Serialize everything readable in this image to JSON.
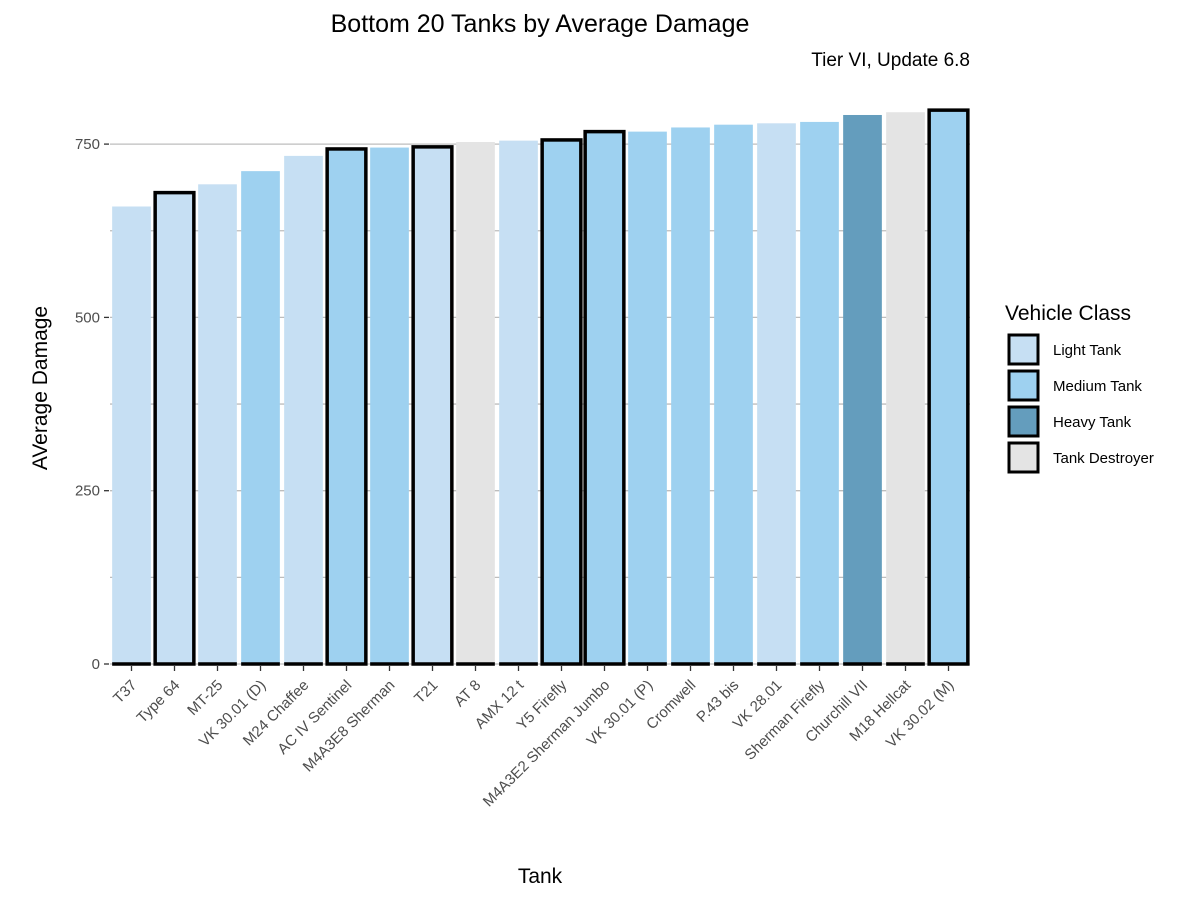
{
  "chart_data": {
    "type": "bar",
    "title": "Bottom 20 Tanks by Average Damage",
    "subtitle": "Tier VI, Update 6.8",
    "xlabel": "Tank",
    "ylabel": "AVerage Damage",
    "ylim": [
      0,
      800
    ],
    "yticks": [
      0,
      250,
      500,
      750
    ],
    "grid": "horizontal",
    "legend": {
      "title": "Vehicle Class",
      "position": "right",
      "entries": [
        {
          "label": "Light Tank",
          "color": "#c6dff3"
        },
        {
          "label": "Medium Tank",
          "color": "#9ed1f0"
        },
        {
          "label": "Heavy Tank",
          "color": "#649dbd"
        },
        {
          "label": "Tank Destroyer",
          "color": "#e4e4e4"
        }
      ]
    },
    "categories": [
      "T37",
      "Type 64",
      "MT-25",
      "VK 30.01 (D)",
      "M24 Chaffee",
      "AC IV Sentinel",
      "M4A3E8 Sherman",
      "T21",
      "AT 8",
      "AMX 12 t",
      "Y5 Firefly",
      "M4A3E2 Sherman Jumbo",
      "VK 30.01 (P)",
      "Cromwell",
      "P.43 bis",
      "VK 28.01",
      "Sherman Firefly",
      "Churchill VII",
      "M18 Hellcat",
      "VK 30.02 (M)"
    ],
    "values": [
      660,
      680,
      692,
      711,
      733,
      743,
      745,
      746,
      753,
      755,
      756,
      768,
      768,
      774,
      778,
      780,
      782,
      792,
      796,
      799
    ],
    "classes": [
      "Light Tank",
      "Light Tank",
      "Light Tank",
      "Medium Tank",
      "Light Tank",
      "Medium Tank",
      "Medium Tank",
      "Light Tank",
      "Tank Destroyer",
      "Light Tank",
      "Medium Tank",
      "Medium Tank",
      "Medium Tank",
      "Medium Tank",
      "Medium Tank",
      "Light Tank",
      "Medium Tank",
      "Heavy Tank",
      "Tank Destroyer",
      "Medium Tank"
    ],
    "outlined": [
      false,
      true,
      false,
      false,
      false,
      true,
      false,
      true,
      false,
      false,
      true,
      true,
      false,
      false,
      false,
      false,
      false,
      false,
      false,
      true
    ]
  }
}
